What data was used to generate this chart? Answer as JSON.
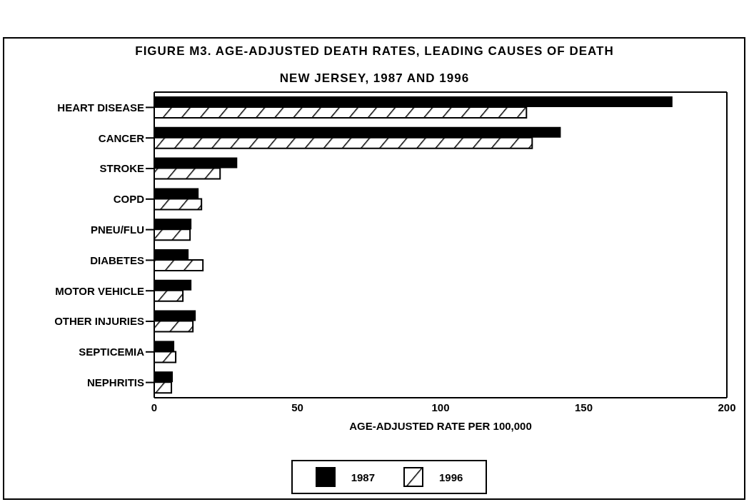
{
  "chart_data": {
    "type": "bar",
    "orientation": "horizontal",
    "title": "FIGURE M3. AGE-ADJUSTED DEATH RATES, LEADING CAUSES OF DEATH",
    "subtitle": "NEW JERSEY, 1987 AND 1996",
    "xlabel": "AGE-ADJUSTED RATE PER 100,000",
    "categories": [
      "HEART DISEASE",
      "CANCER",
      "STROKE",
      "COPD",
      "PNEU/FLU",
      "DIABETES",
      "MOTOR VEHICLE",
      "OTHER INJURIES",
      "SEPTICEMIA",
      "NEPHRITIS"
    ],
    "series": [
      {
        "name": "1987",
        "color": "#000000",
        "values": [
          181,
          142,
          29,
          15.5,
          13,
          12,
          13,
          14.5,
          7,
          6.5
        ]
      },
      {
        "name": "1996",
        "color": "#000000",
        "values": [
          130,
          132,
          23,
          16.5,
          12.5,
          17,
          10,
          13.5,
          7.5,
          6
        ]
      }
    ],
    "xlim": [
      0,
      200
    ],
    "xticks": [
      0,
      50,
      100,
      150,
      200
    ],
    "legend": "bottom"
  }
}
